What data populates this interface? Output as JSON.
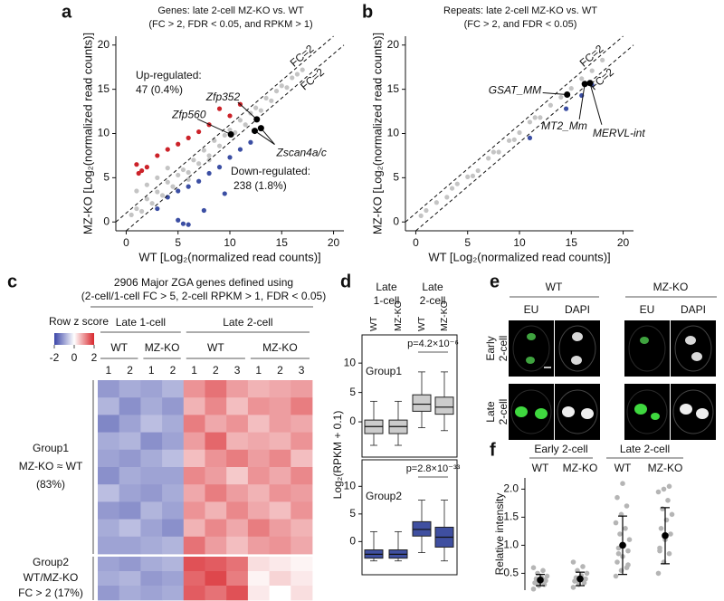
{
  "figure": {
    "panel_labels": [
      "a",
      "b",
      "c",
      "d",
      "e",
      "f"
    ],
    "microscopy": {
      "genotypes": [
        "WT",
        "MZ-KO"
      ],
      "channels": [
        "EU",
        "DAPI"
      ],
      "stages": [
        [
          "Early",
          "2-cell"
        ],
        [
          "Late",
          "2-cell"
        ]
      ]
    }
  },
  "chart_data": [
    {
      "type": "scatter",
      "title": "Genes: late 2-cell MZ-KO vs. WT",
      "subtitle": "(FC > 2, FDR < 0.05, and RPKM > 1)",
      "xlabel": "WT [Log₂(normalized read counts)]",
      "ylabel": "MZ-KO [Log₂(normalized read counts)]",
      "xlim": [
        -1,
        21
      ],
      "ylim": [
        -1,
        21
      ],
      "xticks": [
        0,
        5,
        10,
        15,
        20
      ],
      "yticks": [
        0,
        5,
        10,
        15,
        20
      ],
      "reference_offsets": [
        1,
        -1
      ],
      "reference_labels": [
        "FC=2",
        "FC=2"
      ],
      "series": [
        {
          "color": "#c4c4c4",
          "x": [
            0.5,
            1,
            1.5,
            2,
            2.5,
            3,
            3.5,
            4,
            4.5,
            5,
            5.5,
            6,
            6.5,
            7,
            7.5,
            8,
            8.5,
            9,
            9.5,
            10,
            10.5,
            11,
            11.5,
            12,
            12.5,
            13,
            13.5,
            14,
            14.5,
            15,
            15.5,
            16,
            16.5,
            17,
            1,
            2,
            3,
            4,
            6,
            8
          ],
          "values": [
            0.8,
            1.5,
            1.2,
            2.6,
            2.1,
            3.4,
            3.0,
            4.5,
            4.0,
            5.3,
            5.9,
            5.6,
            7.0,
            6.6,
            8.1,
            7.5,
            9.2,
            8.6,
            9.8,
            10.4,
            10.1,
            11.5,
            11.0,
            12.3,
            12.9,
            12.6,
            14.0,
            13.7,
            14.8,
            15.4,
            15.2,
            16.3,
            16.7,
            17.2,
            3.5,
            4.2,
            5.0,
            6.1,
            4.8,
            7.0
          ]
        },
        {
          "color": "#cc2229",
          "x": [
            1,
            1.5,
            2,
            3,
            4,
            5,
            6,
            7,
            8,
            9,
            10,
            11,
            1.2
          ],
          "values": [
            6.5,
            5.8,
            6.2,
            7.5,
            8.2,
            8.8,
            9.5,
            10.2,
            11,
            12.8,
            12,
            13.3,
            5.5
          ]
        },
        {
          "color": "#3b4ea3",
          "x": [
            3,
            4,
            5,
            5.5,
            6,
            7,
            8,
            9,
            10,
            11,
            12,
            5,
            6,
            7.5,
            9.5
          ],
          "values": [
            1.5,
            2.8,
            3.5,
            -0.2,
            4,
            4.6,
            5.5,
            6.2,
            7.3,
            8.2,
            9,
            0.2,
            -0.3,
            1.3,
            3.2
          ]
        }
      ],
      "labeled_point_color": "#000000",
      "labeled_points": [
        {
          "label": "Zfp560",
          "x": [
            10.1
          ],
          "y": [
            9.9
          ]
        },
        {
          "label": "Zfp352",
          "x": [
            12.6
          ],
          "y": [
            11.6
          ]
        },
        {
          "label": "Zscan4a/c",
          "x": [
            12.4,
            13
          ],
          "y": [
            10.3,
            10.6
          ]
        }
      ],
      "annotations": [
        {
          "text": "Up-regulated:",
          "color": "#cc2229"
        },
        {
          "text": "47 (0.4%)",
          "color": "#cc2229"
        },
        {
          "text": "Down-regulated:",
          "color": "#3b4ea3"
        },
        {
          "text": "238 (1.8%)",
          "color": "#3b4ea3"
        }
      ]
    },
    {
      "type": "scatter",
      "title": "Repeats: late 2-cell MZ-KO vs. WT",
      "subtitle": "(FC > 2, and FDR < 0.05)",
      "xlabel": "WT [Log₂(normalized read counts)]",
      "ylabel": "MZ-KO [Log₂(normalized read counts)]",
      "xlim": [
        -1,
        21
      ],
      "ylim": [
        -1,
        21
      ],
      "xticks": [
        0,
        5,
        10,
        15,
        20
      ],
      "yticks": [
        0,
        5,
        10,
        15,
        20
      ],
      "reference_offsets": [
        1,
        -1
      ],
      "reference_labels": [
        "FC=2",
        "FC=2"
      ],
      "series": [
        {
          "color": "#c4c4c4",
          "x": [
            0.5,
            1,
            2,
            3,
            4,
            5,
            6,
            7,
            8,
            9,
            10,
            11,
            12,
            13,
            14,
            15,
            16,
            17,
            18,
            3.5,
            5.5,
            7.5,
            9.5,
            11.5
          ],
          "values": [
            0.7,
            1.3,
            2.2,
            2.8,
            4.3,
            5.1,
            5.8,
            7.2,
            7.9,
            9.2,
            10.1,
            11.3,
            11.8,
            13.2,
            14.1,
            15.1,
            16.2,
            17.1,
            18.3,
            3.8,
            5.2,
            7.9,
            9.3,
            11.8
          ]
        },
        {
          "color": "#3b4ea3",
          "x": [
            11,
            14.5,
            16,
            17
          ],
          "values": [
            9.5,
            12.8,
            14.3,
            15.5
          ]
        }
      ],
      "labeled_point_color": "#000000",
      "labeled_points": [
        {
          "label": "GSAT_MM",
          "x": [
            14.6
          ],
          "y": [
            14.4
          ]
        },
        {
          "label": "MT2_Mm",
          "x": [
            16.3
          ],
          "y": [
            15.6
          ]
        },
        {
          "label": "MERVL-int",
          "x": [
            16.8
          ],
          "y": [
            15.7
          ]
        }
      ],
      "annotations": []
    },
    {
      "type": "heatmap",
      "title": [
        "2906 Major ZGA genes defined using",
        "(2-cell/1-cell FC > 5, 2-cell RPKM > 1, FDR < 0.05)"
      ],
      "colorbar_label": "Row z score",
      "colorbar_lim": [
        -2,
        2
      ],
      "colorbar_ticks": [
        -2,
        0,
        2
      ],
      "colors": [
        "#3c46a8",
        "#ffffff",
        "#d8262c"
      ],
      "column_groups": [
        {
          "label": "Late 1-cell",
          "subgroups": [
            {
              "label": "WT",
              "replicates": [
                "1",
                "2"
              ]
            },
            {
              "label": "MZ-KO",
              "replicates": [
                "1",
                "2"
              ]
            }
          ]
        },
        {
          "label": "Late 2-cell",
          "subgroups": [
            {
              "label": "WT",
              "replicates": [
                "1",
                "2",
                "3"
              ]
            },
            {
              "label": "MZ-KO",
              "replicates": [
                "1",
                "2",
                "3"
              ]
            }
          ]
        }
      ],
      "row_groups": [
        {
          "label": [
            "Group1",
            "MZ-KO ≈ WT",
            "(83%)"
          ],
          "values": [
            [
              -1.1,
              -0.9,
              -1.0,
              -0.8,
              1.0,
              1.3,
              0.9,
              0.7,
              0.8,
              0.9
            ],
            [
              -0.8,
              -1.2,
              -0.9,
              -1.1,
              0.7,
              1.1,
              0.6,
              1.0,
              0.9,
              1.2
            ],
            [
              -1.3,
              -1.0,
              -0.7,
              -0.9,
              1.2,
              0.8,
              1.0,
              0.6,
              0.9,
              0.8
            ],
            [
              -0.9,
              -0.8,
              -1.2,
              -1.0,
              0.9,
              1.4,
              0.7,
              0.8,
              0.7,
              1.0
            ],
            [
              -1.0,
              -1.1,
              -0.9,
              -0.7,
              0.6,
              1.0,
              1.2,
              0.9,
              1.1,
              0.6
            ],
            [
              -1.2,
              -0.9,
              -1.0,
              -1.0,
              1.1,
              0.9,
              0.5,
              1.0,
              0.8,
              1.1
            ],
            [
              -0.7,
              -1.0,
              -1.1,
              -0.9,
              0.8,
              1.2,
              0.9,
              0.7,
              1.0,
              0.9
            ],
            [
              -1.1,
              -1.2,
              -0.8,
              -1.0,
              1.0,
              0.7,
              1.1,
              0.8,
              0.6,
              1.0
            ],
            [
              -0.9,
              -0.7,
              -1.0,
              -1.2,
              0.7,
              1.1,
              0.8,
              1.2,
              0.9,
              0.7
            ],
            [
              -1.0,
              -1.0,
              -0.9,
              -0.8,
              1.3,
              0.9,
              0.6,
              0.9,
              1.0,
              0.8
            ]
          ]
        },
        {
          "label": [
            "Group2",
            "WT/MZ-KO",
            "FC > 2 (17%)"
          ],
          "values": [
            [
              -1.0,
              -1.1,
              -0.9,
              -0.8,
              1.6,
              1.5,
              1.3,
              0.3,
              0.2,
              0.1
            ],
            [
              -0.9,
              -0.8,
              -1.1,
              -1.0,
              1.4,
              1.7,
              1.2,
              0.1,
              0.4,
              0.2
            ],
            [
              -1.1,
              -0.9,
              -1.0,
              -0.9,
              1.5,
              1.3,
              1.6,
              0.2,
              0.0,
              0.3
            ]
          ]
        }
      ]
    },
    {
      "type": "box",
      "ylabel": "Log₂(RPKM + 0.1)",
      "ylim": [
        -6,
        14.8
      ],
      "yticks": [
        0,
        5,
        10
      ],
      "column_headers": [
        [
          "Late",
          "1-cell"
        ],
        [
          "Late",
          "2-cell"
        ]
      ],
      "samples": [
        "WT",
        "MZ-KO",
        "WT",
        "MZ-KO"
      ],
      "groups": [
        {
          "name": "Group1",
          "color": "#cccccc",
          "p_label": "p=4.2×10⁻⁶",
          "boxes": [
            {
              "min": -4,
              "q1": -2,
              "median": -0.8,
              "q3": 0.3,
              "max": 3.5
            },
            {
              "min": -4,
              "q1": -2,
              "median": -0.8,
              "q3": 0.3,
              "max": 3.5
            },
            {
              "min": -1,
              "q1": 1.8,
              "median": 3,
              "q3": 4.6,
              "max": 8.5
            },
            {
              "min": -1.5,
              "q1": 1.3,
              "median": 2.5,
              "q3": 4.2,
              "max": 8.5
            }
          ]
        },
        {
          "name": "Group2",
          "color": "#3f4fa0",
          "p_label": "p=2.8×10⁻³³",
          "boxes": [
            {
              "min": -3.5,
              "q1": -3,
              "median": -2.3,
              "q3": -1.5,
              "max": 1.8
            },
            {
              "min": -3.5,
              "q1": -3,
              "median": -2.3,
              "q3": -1.5,
              "max": 1.8
            },
            {
              "min": -2,
              "q1": 1,
              "median": 2.2,
              "q3": 3.6,
              "max": 7.5
            },
            {
              "min": -3.5,
              "q1": -1,
              "median": 0.8,
              "q3": 2.6,
              "max": 7.5
            }
          ]
        }
      ]
    },
    {
      "type": "strip",
      "ylabel": "Relative intensity",
      "ylim": [
        0.2,
        2.2
      ],
      "yticks": [
        0.5,
        {
          "value": 1,
          "label": "1.0"
        },
        1.5,
        {
          "value": 2,
          "label": "2.0"
        }
      ],
      "headers": [
        "Early 2-cell",
        "Late 2-cell"
      ],
      "point_color": "#b5b5b5",
      "mean_color": "#000000",
      "groups": [
        {
          "name": "WT",
          "values": [
            0.22,
            0.28,
            0.3,
            0.33,
            0.35,
            0.37,
            0.4,
            0.42,
            0.45,
            0.5,
            0.55,
            0.6,
            0.32,
            0.38
          ],
          "mean": 0.38,
          "sd": 0.1
        },
        {
          "name": "MZ-KO",
          "values": [
            0.25,
            0.3,
            0.33,
            0.36,
            0.38,
            0.4,
            0.42,
            0.46,
            0.5,
            0.55,
            0.62,
            0.7,
            0.35
          ],
          "mean": 0.4,
          "sd": 0.12
        },
        {
          "name": "WT",
          "values": [
            0.45,
            0.55,
            0.6,
            0.7,
            0.8,
            0.9,
            0.95,
            1.0,
            1.1,
            1.2,
            1.3,
            1.4,
            1.55,
            1.7,
            1.85,
            2.1,
            0.65,
            0.85
          ],
          "mean": 1.0,
          "sd": 0.52
        },
        {
          "name": "MZ-KO",
          "values": [
            0.5,
            0.7,
            0.85,
            0.95,
            1.1,
            1.2,
            1.3,
            1.45,
            1.55,
            1.65,
            1.8,
            1.95,
            2.0,
            2.05,
            0.9
          ],
          "mean": 1.17,
          "sd": 0.5
        }
      ]
    }
  ]
}
